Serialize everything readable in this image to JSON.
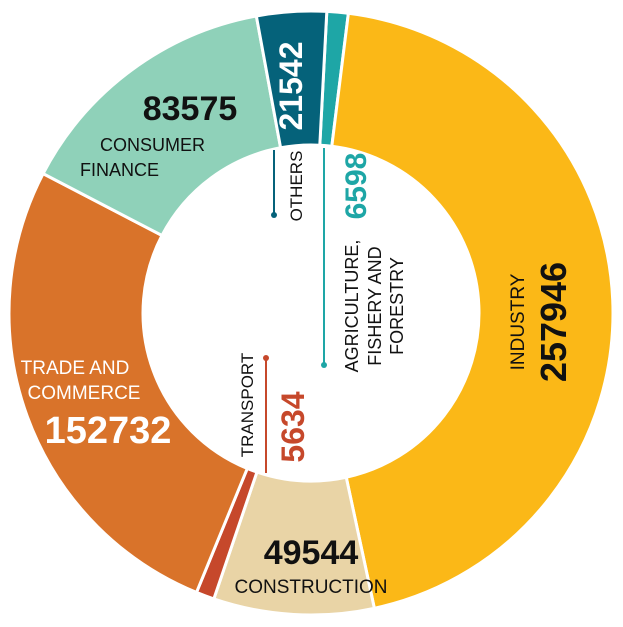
{
  "chart_data": {
    "type": "pie",
    "donut": true,
    "unit": "",
    "categories": [
      "AGRICULTURE, FISHERY AND FORESTRY",
      "INDUSTRY",
      "CONSTRUCTION",
      "TRANSPORT",
      "TRADE AND COMMERCE",
      "CONSUMER FINANCE",
      "OTHERS"
    ],
    "values": [
      6598,
      257946,
      49544,
      5634,
      152732,
      83575,
      21542
    ],
    "value_labels": [
      "6598",
      "257946",
      "49544",
      "5634",
      "152732",
      "83575",
      "21542"
    ],
    "colors": [
      "#1ea6a6",
      "#fbb817",
      "#e9d4a6",
      "#c6482b",
      "#d9732a",
      "#8fd1b9",
      "#05627a"
    ],
    "label_lines": {
      "agriculture": [
        "AGRICULTURE,",
        "FISHERY AND",
        "FORESTRY"
      ],
      "industry": [
        "INDUSTRY"
      ],
      "construction": [
        "CONSTRUCTION"
      ],
      "transport": [
        "TRANSPORT"
      ],
      "trade": [
        "TRADE AND",
        "COMMERCE"
      ],
      "consumer": [
        "CONSUMER",
        "FINANCE"
      ],
      "others": [
        "OTHERS"
      ]
    },
    "legend": "none",
    "title": ""
  }
}
